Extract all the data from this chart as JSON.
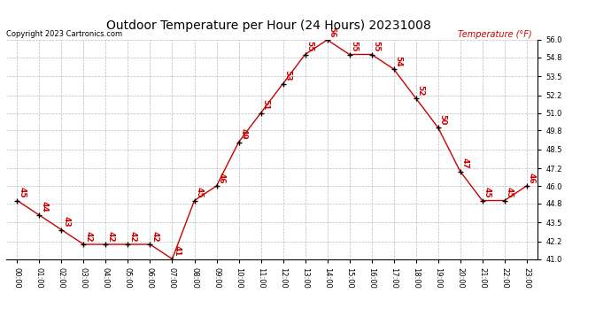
{
  "title": "Outdoor Temperature per Hour (24 Hours) 20231008",
  "copyright": "Copyright 2023 Cartronics.com",
  "legend_label": "Temperature (°F)",
  "hours": [
    "00:00",
    "01:00",
    "02:00",
    "03:00",
    "04:00",
    "05:00",
    "06:00",
    "07:00",
    "08:00",
    "09:00",
    "10:00",
    "11:00",
    "12:00",
    "13:00",
    "14:00",
    "15:00",
    "16:00",
    "17:00",
    "18:00",
    "19:00",
    "20:00",
    "21:00",
    "22:00",
    "23:00"
  ],
  "temperatures": [
    45,
    44,
    43,
    42,
    42,
    42,
    42,
    41,
    45,
    46,
    49,
    51,
    53,
    55,
    56,
    55,
    55,
    54,
    52,
    50,
    47,
    45,
    45,
    46
  ],
  "line_color": "#cc0000",
  "marker_color": "#000000",
  "label_color": "#cc0000",
  "background_color": "#ffffff",
  "grid_color": "#aaaaaa",
  "ylim": [
    41.0,
    56.0
  ],
  "yticks": [
    41.0,
    42.2,
    43.5,
    44.8,
    46.0,
    47.2,
    48.5,
    49.8,
    51.0,
    52.2,
    53.5,
    54.8,
    56.0
  ],
  "title_color": "#000000",
  "copyright_color": "#000000",
  "legend_color": "#cc0000",
  "title_fontsize": 10,
  "copyright_fontsize": 6,
  "legend_fontsize": 7,
  "tick_fontsize": 6,
  "label_fontsize": 6.5
}
